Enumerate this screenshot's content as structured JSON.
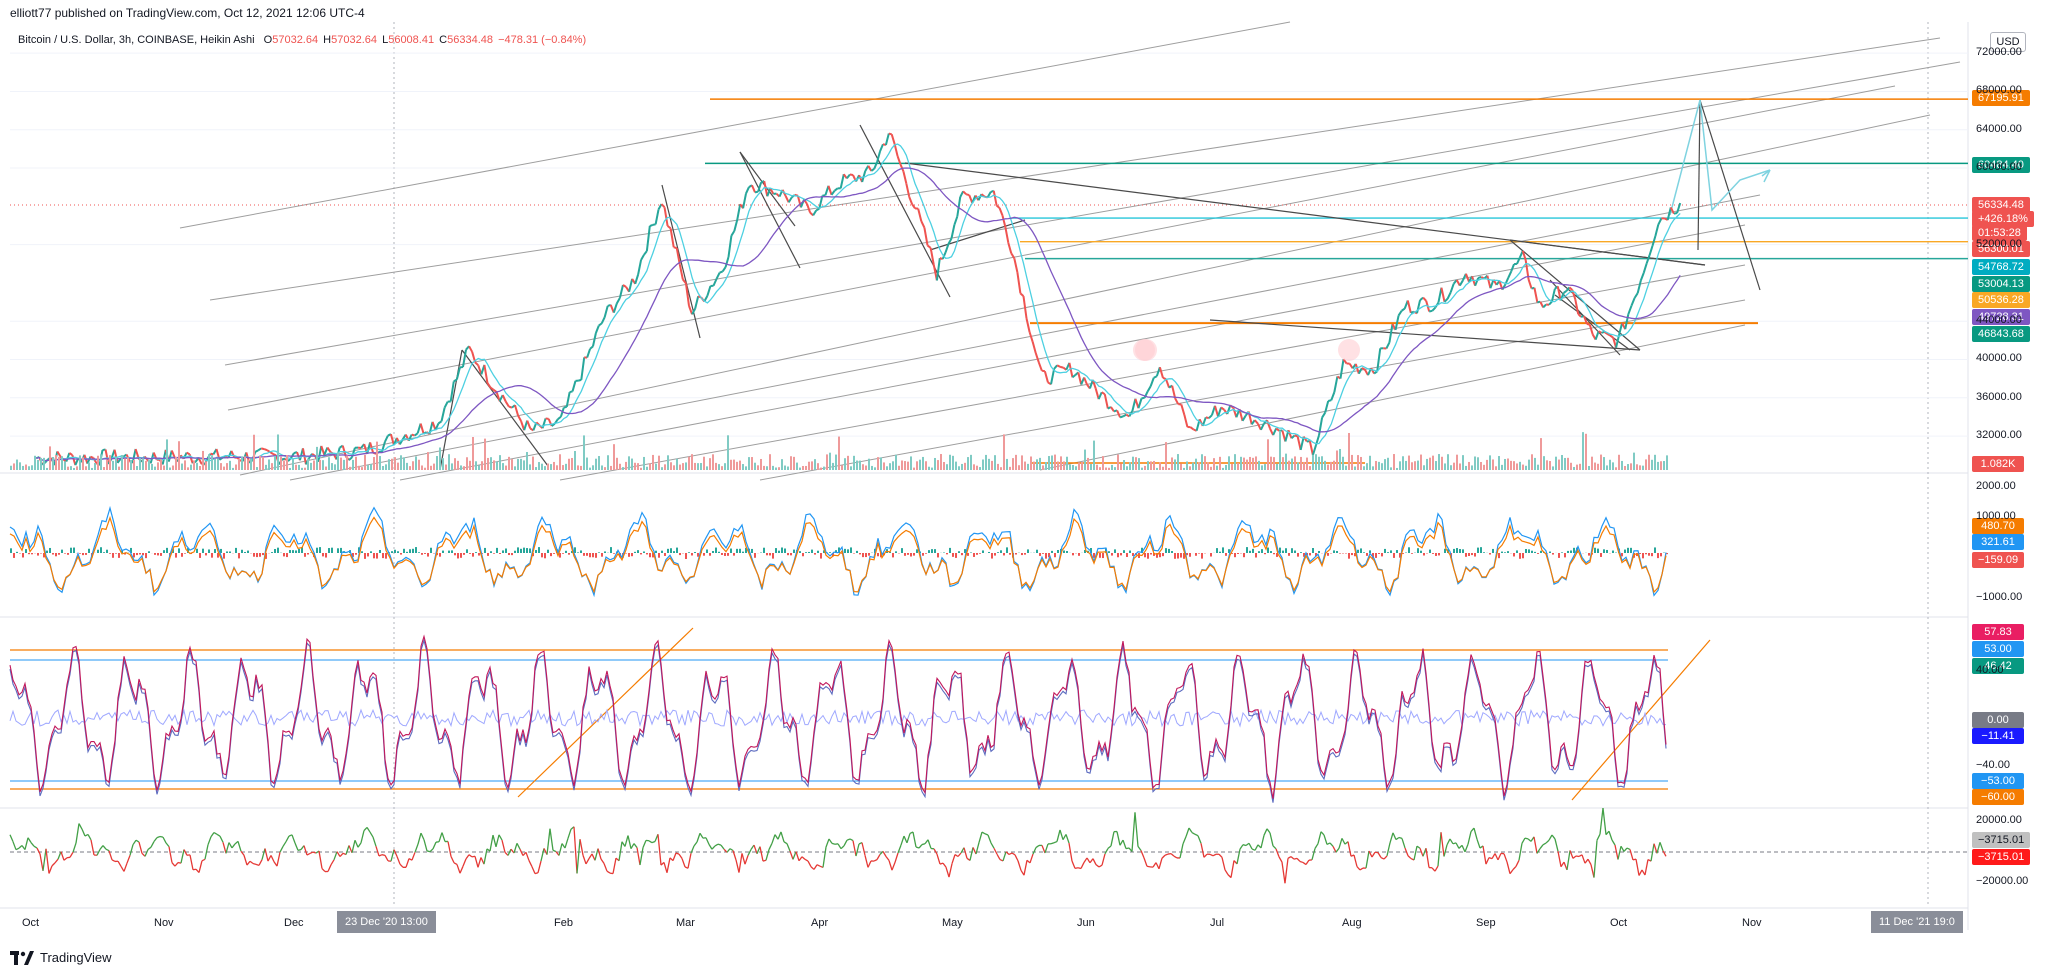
{
  "header": {
    "publish_line": "elliott77 published on TradingView.com, Oct 12, 2021 12:06 UTC-4",
    "symbol": "Bitcoin / U.S. Dollar, 3h, COINBASE, Heikin Ashi",
    "o_label": "O",
    "o_value": "57032.64",
    "h_label": "H",
    "h_value": "57032.64",
    "l_label": "L",
    "l_value": "56008.41",
    "c_label": "C",
    "c_value": "56334.48",
    "change": "−478.31 (−0.84%)",
    "currency": "USD"
  },
  "colors": {
    "up": "#26a69a",
    "down": "#ef5350",
    "orange": "#f57c00",
    "teal": "#089981",
    "cyan": "#22ab94",
    "yellow": "#f9a825",
    "purple": "#7e57c2",
    "gray_line": "#9e9e9e",
    "dark_line": "#4a4a4a",
    "light_blue": "#6bc8d8",
    "red_osc": "#e91e63",
    "stoch_k": "#d84315",
    "stoch_d": "#5c6bc0",
    "cmf_up": "#43a047",
    "cmf_down": "#e53935"
  },
  "chart_data": {
    "type": "line",
    "title": "Bitcoin / U.S. Dollar, 3h, COINBASE, Heikin Ashi",
    "x_months": [
      "Oct",
      "Nov",
      "Dec",
      "Feb",
      "Mar",
      "Apr",
      "May",
      "Jun",
      "Jul",
      "Aug",
      "Sep",
      "Oct",
      "Nov"
    ],
    "crosshair_date_left": "23 Dec '20 13:00",
    "crosshair_date_right": "11 Dec '21 19:0",
    "price_axis_ticks": [
      "72000.00",
      "68000.00",
      "64000.00",
      "60000.00",
      "52000.00",
      "44000.00",
      "40000.00",
      "36000.00",
      "32000.00"
    ],
    "ylim": [
      29500,
      74000
    ],
    "series": [
      {
        "name": "BTCUSD close (approx)",
        "x": [
          "2020-10-01",
          "2020-11-01",
          "2020-12-01",
          "2020-12-15",
          "2021-01-01",
          "2021-01-08",
          "2021-01-15",
          "2021-01-22",
          "2021-01-29",
          "2021-02-08",
          "2021-02-15",
          "2021-02-21",
          "2021-02-28",
          "2021-03-07",
          "2021-03-13",
          "2021-03-20",
          "2021-03-27",
          "2021-04-03",
          "2021-04-10",
          "2021-04-14",
          "2021-04-20",
          "2021-04-25",
          "2021-05-01",
          "2021-05-08",
          "2021-05-12",
          "2021-05-19",
          "2021-05-26",
          "2021-06-01",
          "2021-06-08",
          "2021-06-15",
          "2021-06-22",
          "2021-06-29",
          "2021-07-06",
          "2021-07-13",
          "2021-07-20",
          "2021-07-27",
          "2021-08-03",
          "2021-08-10",
          "2021-08-17",
          "2021-08-24",
          "2021-08-31",
          "2021-09-06",
          "2021-09-10",
          "2021-09-16",
          "2021-09-22",
          "2021-09-28",
          "2021-10-03",
          "2021-10-07",
          "2021-10-12"
        ],
        "values": [
          29700,
          29800,
          29900,
          30500,
          33500,
          41000,
          36500,
          32500,
          33500,
          44500,
          48500,
          56800,
          45000,
          49500,
          58500,
          57500,
          55500,
          58500,
          59500,
          63800,
          56000,
          49000,
          57000,
          57500,
          52000,
          38000,
          39000,
          36500,
          34000,
          39500,
          32500,
          35000,
          34000,
          32500,
          30500,
          39500,
          39000,
          45500,
          46000,
          49000,
          47500,
          50500,
          45500,
          47500,
          42500,
          42000,
          48500,
          54500,
          56334.48
        ]
      }
    ],
    "price_labels": [
      {
        "value": "67195.91",
        "color": "#f57c00"
      },
      {
        "value": "60484.40",
        "color": "#089981"
      },
      {
        "value": "56334.48",
        "color": "#ef5350"
      },
      {
        "value": "+426.18%",
        "color": "#ef5350"
      },
      {
        "value": "01:53:28",
        "color": "#ef5350"
      },
      {
        "value": "56300.01",
        "color": "#ef5350"
      },
      {
        "value": "54768.72",
        "color": "#00acc1"
      },
      {
        "value": "53004.13",
        "color": "#089981"
      },
      {
        "value": "50536.28",
        "color": "#f9a825"
      },
      {
        "value": "49728.31",
        "color": "#7e57c2"
      },
      {
        "value": "46843.68",
        "color": "#089981"
      },
      {
        "value": "1.082K",
        "color": "#ef5350"
      }
    ],
    "horizontal_levels": [
      {
        "name": "resistance-67195",
        "value": 67195.91
      },
      {
        "name": "level-60484",
        "value": 60484.4
      },
      {
        "name": "level-54768",
        "value": 54768.72
      },
      {
        "name": "level-52000-yellow",
        "value": 52300
      },
      {
        "name": "level-50536",
        "value": 50536.28
      },
      {
        "name": "support-43800",
        "value": 43800
      }
    ],
    "macd": {
      "ticks": [
        "2000.00",
        "1000.00",
        "−1000.00"
      ],
      "labels": [
        {
          "value": "480.70",
          "color": "#f57c00"
        },
        {
          "value": "321.61",
          "color": "#2196f3"
        },
        {
          "value": "−159.09",
          "color": "#ef5350"
        }
      ]
    },
    "stoch": {
      "ticks": [
        "40.00",
        "−40.00"
      ],
      "labels": [
        {
          "value": "57.83",
          "color": "#e91e63"
        },
        {
          "value": "53.00",
          "color": "#2196f3"
        },
        {
          "value": "46.42",
          "color": "#089981"
        },
        {
          "value": "0.00",
          "color": "#787b86"
        },
        {
          "value": "−11.41",
          "color": "#1a1aff"
        },
        {
          "value": "−53.00",
          "color": "#2196f3"
        },
        {
          "value": "−60.00",
          "color": "#f57c00"
        }
      ]
    },
    "cmf": {
      "ticks": [
        "20000.00",
        "−20000.00"
      ],
      "labels": [
        {
          "value": "−3715.01",
          "color": "#c0c0c0"
        },
        {
          "value": "−3715.01",
          "color": "#ff1a1a"
        }
      ]
    }
  },
  "footer": {
    "brand": "TradingView"
  }
}
